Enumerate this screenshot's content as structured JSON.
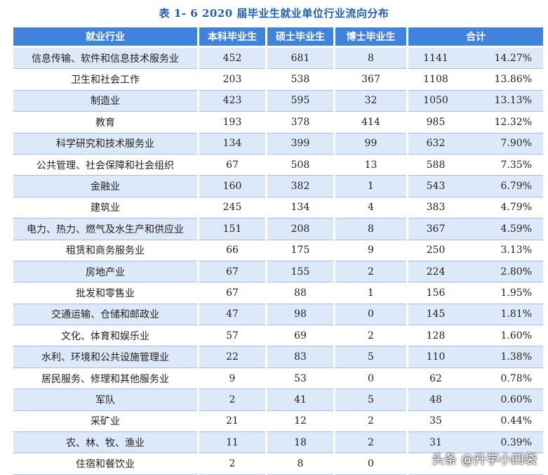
{
  "caption": "表 1- 6    2020 届毕业生就业单位行业流向分布",
  "headers": {
    "industry": "就业行业",
    "bachelor": "本科毕业生",
    "master": "硕士毕业生",
    "doctor": "博士毕业生",
    "total": "合计"
  },
  "rows": [
    {
      "industry": "信息传输、软件和信息技术服务业",
      "bachelor": "452",
      "master": "681",
      "doctor": "8",
      "total": "1141",
      "pct": "14.27%"
    },
    {
      "industry": "卫生和社会工作",
      "bachelor": "203",
      "master": "538",
      "doctor": "367",
      "total": "1108",
      "pct": "13.86%"
    },
    {
      "industry": "制造业",
      "bachelor": "423",
      "master": "595",
      "doctor": "32",
      "total": "1050",
      "pct": "13.13%"
    },
    {
      "industry": "教育",
      "bachelor": "193",
      "master": "378",
      "doctor": "414",
      "total": "985",
      "pct": "12.32%"
    },
    {
      "industry": "科学研究和技术服务业",
      "bachelor": "134",
      "master": "399",
      "doctor": "99",
      "total": "632",
      "pct": "7.90%"
    },
    {
      "industry": "公共管理、社会保障和社会组织",
      "bachelor": "67",
      "master": "508",
      "doctor": "13",
      "total": "588",
      "pct": "7.35%"
    },
    {
      "industry": "金融业",
      "bachelor": "160",
      "master": "382",
      "doctor": "1",
      "total": "543",
      "pct": "6.79%"
    },
    {
      "industry": "建筑业",
      "bachelor": "245",
      "master": "134",
      "doctor": "4",
      "total": "383",
      "pct": "4.79%"
    },
    {
      "industry": "电力、热力、燃气及水生产和供应业",
      "bachelor": "151",
      "master": "208",
      "doctor": "8",
      "total": "367",
      "pct": "4.59%"
    },
    {
      "industry": "租赁和商务服务业",
      "bachelor": "66",
      "master": "175",
      "doctor": "9",
      "total": "250",
      "pct": "3.13%"
    },
    {
      "industry": "房地产业",
      "bachelor": "67",
      "master": "155",
      "doctor": "2",
      "total": "224",
      "pct": "2.80%"
    },
    {
      "industry": "批发和零售业",
      "bachelor": "67",
      "master": "88",
      "doctor": "1",
      "total": "156",
      "pct": "1.95%"
    },
    {
      "industry": "交通运输、仓储和邮政业",
      "bachelor": "47",
      "master": "98",
      "doctor": "0",
      "total": "145",
      "pct": "1.81%"
    },
    {
      "industry": "文化、体育和娱乐业",
      "bachelor": "57",
      "master": "69",
      "doctor": "2",
      "total": "128",
      "pct": "1.60%"
    },
    {
      "industry": "水利、环境和公共设施管理业",
      "bachelor": "22",
      "master": "83",
      "doctor": "5",
      "total": "110",
      "pct": "1.38%"
    },
    {
      "industry": "居民服务、修理和其他服务业",
      "bachelor": "9",
      "master": "53",
      "doctor": "0",
      "total": "62",
      "pct": "0.78%"
    },
    {
      "industry": "军队",
      "bachelor": "2",
      "master": "41",
      "doctor": "5",
      "total": "48",
      "pct": "0.60%"
    },
    {
      "industry": "采矿业",
      "bachelor": "21",
      "master": "12",
      "doctor": "2",
      "total": "35",
      "pct": "0.44%"
    },
    {
      "industry": "农、林、牧、渔业",
      "bachelor": "11",
      "master": "18",
      "doctor": "2",
      "total": "31",
      "pct": "0.39%"
    },
    {
      "industry": "住宿和餐饮业",
      "bachelor": "2",
      "master": "8",
      "doctor": "0",
      "total": "",
      "pct": ""
    }
  ],
  "watermark": "头条 @升学小四袋"
}
